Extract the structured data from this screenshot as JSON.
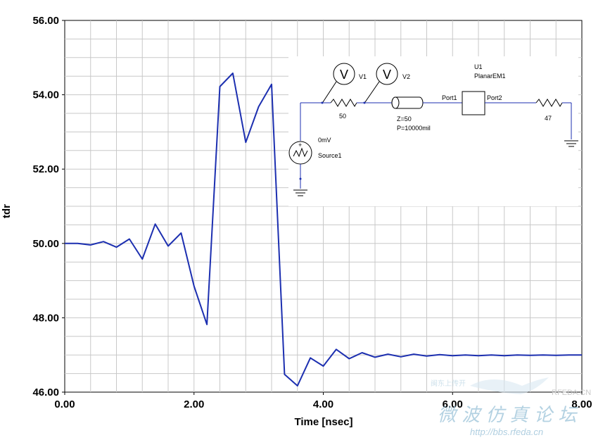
{
  "chart_data": {
    "type": "line",
    "title": "",
    "xlabel": "Time [nsec]",
    "ylabel": "tdr",
    "xlim": [
      0,
      8
    ],
    "ylim": [
      46,
      56
    ],
    "x_ticks": [
      "0.00",
      "2.00",
      "4.00",
      "6.00",
      "8.00"
    ],
    "y_ticks": [
      "46.00",
      "48.00",
      "50.00",
      "52.00",
      "54.00",
      "56.00"
    ],
    "grid": true,
    "line_color": "#1c2fb0",
    "series": [
      {
        "x": [
          0.0,
          0.2,
          0.4,
          0.6,
          0.8,
          1.0,
          1.2,
          1.4,
          1.6,
          1.8,
          2.0,
          2.2,
          2.4,
          2.6,
          2.8,
          3.0,
          3.2,
          3.4,
          3.6,
          3.8,
          4.0,
          4.2,
          4.4,
          4.6,
          4.8,
          5.0,
          5.2,
          5.4,
          5.6,
          5.8,
          6.0,
          6.2,
          6.4,
          6.6,
          6.8,
          7.0,
          7.2,
          7.4,
          7.6,
          7.8,
          8.0
        ],
        "values": [
          50.0,
          50.0,
          49.96,
          50.05,
          49.9,
          50.12,
          49.58,
          50.52,
          49.93,
          50.28,
          48.85,
          47.82,
          54.22,
          54.58,
          52.72,
          53.68,
          54.28,
          46.48,
          46.17,
          46.92,
          46.7,
          47.15,
          46.9,
          47.06,
          46.94,
          47.02,
          46.95,
          47.02,
          46.97,
          47.01,
          46.98,
          47.0,
          46.98,
          47.0,
          46.98,
          47.0,
          46.99,
          47.0,
          46.99,
          47.0,
          47.0
        ]
      }
    ]
  },
  "schematic": {
    "u1_ref": "U1",
    "u1_name": "PlanarEM1",
    "v1_symbol": "V",
    "v1_label": "V1",
    "v2_symbol": "V",
    "v2_label": "V2",
    "r1_value": "50",
    "tline_z": "Z=50",
    "tline_p": "P=10000mil",
    "port1": "Port1",
    "port2": "Port2",
    "r2_value": "47",
    "source_value": "0mV",
    "source_name": "Source1"
  },
  "watermark": {
    "cn_top": "闽东上传开",
    "cn_main": "微 波 仿 真 论 坛",
    "url": "http://bbs.rfeda.cn",
    "brand": "RFEDA.CN"
  },
  "colors": {
    "line": "#1c2fb0",
    "grid": "#c8c8c8",
    "schematic_wire": "#1c2fb0"
  }
}
